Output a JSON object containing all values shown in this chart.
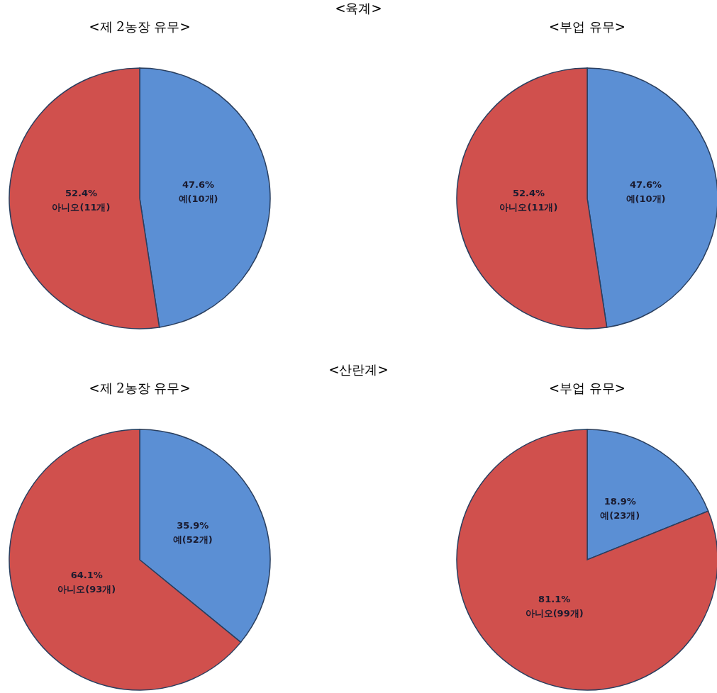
{
  "chart_data": [
    {
      "type": "pie",
      "title": "<제 2농장 유무>",
      "annotations": [
        "<육계>"
      ],
      "categories": [
        "예(10개)",
        "아니오(11개)"
      ],
      "values": [
        47.6,
        52.4
      ],
      "colors": [
        "#5b8fd4",
        "#d0504d"
      ],
      "value_labels": [
        "47.6%",
        "52.4%"
      ]
    },
    {
      "type": "pie",
      "title": "<부업 유무>",
      "categories": [
        "예(10개)",
        "아니오(11개)"
      ],
      "values": [
        47.6,
        52.4
      ],
      "colors": [
        "#5b8fd4",
        "#d0504d"
      ],
      "value_labels": [
        "47.6%",
        "52.4%"
      ]
    },
    {
      "type": "pie",
      "title": "<제 2농장 유무>",
      "annotations": [
        "<산란계>"
      ],
      "categories": [
        "예(52개)",
        "아니오(93개)"
      ],
      "values": [
        35.9,
        64.1
      ],
      "colors": [
        "#5b8fd4",
        "#d0504d"
      ],
      "value_labels": [
        "35.9%",
        "64.1%"
      ]
    },
    {
      "type": "pie",
      "title": "<부업 유무>",
      "categories": [
        "예(23개)",
        "아니오(99개)"
      ],
      "values": [
        18.9,
        81.1
      ],
      "colors": [
        "#5b8fd4",
        "#d0504d"
      ],
      "value_labels": [
        "18.9%",
        "81.1%"
      ]
    }
  ]
}
